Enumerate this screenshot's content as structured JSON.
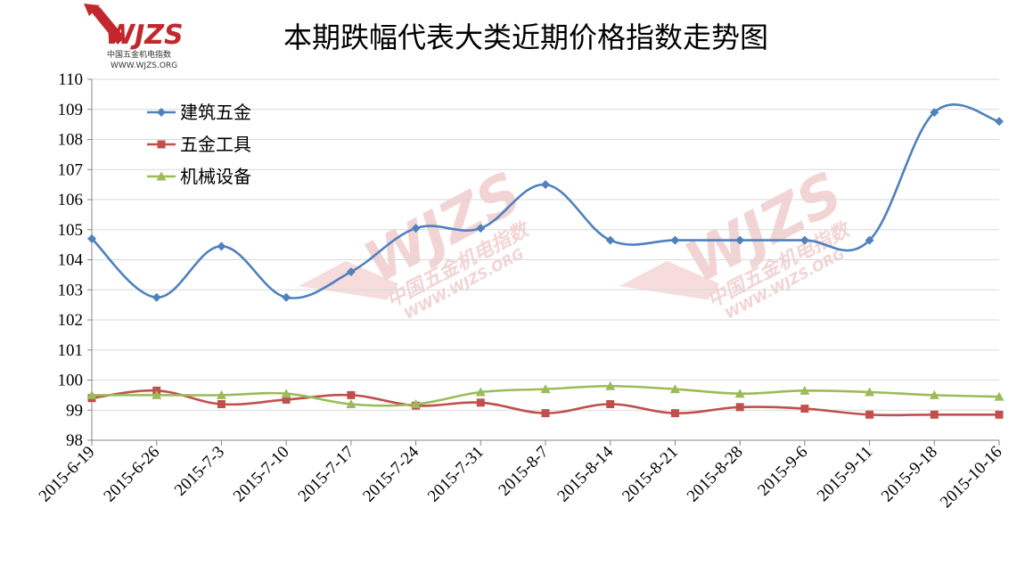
{
  "logo": {
    "mark": "WJZS",
    "subtitle": "中国五金机电指数",
    "url": "WWW.WJZS.ORG"
  },
  "watermark": {
    "mark": "WJZS",
    "subtitle": "中国五金机电指数",
    "url": "WWW.WJZS.ORG"
  },
  "colors": {
    "axis": "#868686",
    "grid": "#d9d9d9",
    "logo_red": "#c0282d"
  },
  "chart_data": {
    "type": "line",
    "title": "本期跌幅代表大类近期价格指数走势图",
    "xlabel": "",
    "ylabel": "",
    "ylim": [
      98,
      110
    ],
    "yticks": [
      98,
      99,
      100,
      101,
      102,
      103,
      104,
      105,
      106,
      107,
      108,
      109,
      110
    ],
    "grid": true,
    "legend_position": "top-left",
    "categories": [
      "2015-6-19",
      "2015-6-26",
      "2015-7-3",
      "2015-7-10",
      "2015-7-17",
      "2015-7-24",
      "2015-7-31",
      "2015-8-7",
      "2015-8-14",
      "2015-8-21",
      "2015-8-28",
      "2015-9-6",
      "2015-9-11",
      "2015-9-18",
      "2015-10-16"
    ],
    "series": [
      {
        "name": "建筑五金",
        "color": "#4f81bd",
        "marker": "diamond",
        "values": [
          104.7,
          102.75,
          104.45,
          102.75,
          103.6,
          105.05,
          105.05,
          106.5,
          104.65,
          104.65,
          104.65,
          104.65,
          104.65,
          108.9,
          108.6
        ]
      },
      {
        "name": "五金工具",
        "color": "#c0504d",
        "marker": "square",
        "values": [
          99.4,
          99.65,
          99.2,
          99.35,
          99.5,
          99.15,
          99.25,
          98.9,
          99.2,
          98.9,
          99.1,
          99.05,
          98.85,
          98.85,
          98.85
        ]
      },
      {
        "name": "机械设备",
        "color": "#9bbb59",
        "marker": "triangle",
        "values": [
          99.5,
          99.5,
          99.5,
          99.55,
          99.2,
          99.2,
          99.6,
          99.7,
          99.8,
          99.7,
          99.55,
          99.65,
          99.6,
          99.5,
          99.45
        ]
      }
    ]
  }
}
